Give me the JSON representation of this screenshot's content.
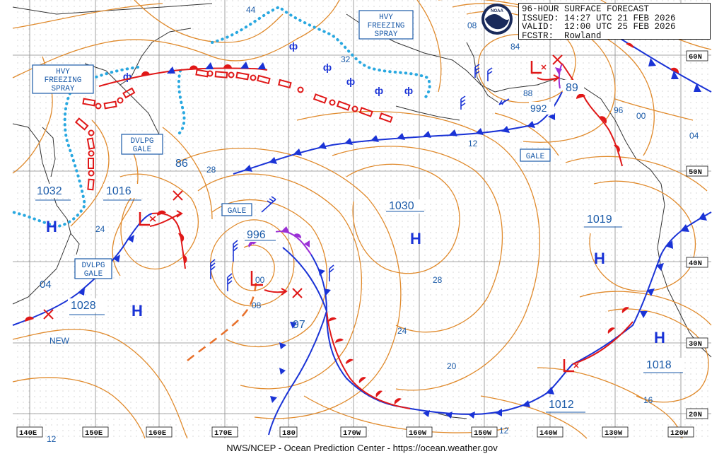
{
  "header": {
    "title": "96-HOUR SURFACE FORECAST",
    "issued": "ISSUED: 14:27 UTC 21 FEB 2026",
    "valid": "VALID:  12:00 UTC 25 FEB 2026",
    "forecaster": "FCSTR:  Rowland"
  },
  "logo_text": "NOAA",
  "credit": "NWS/NCEP - Ocean Prediction Center - https://ocean.weather.gov",
  "lat_labels": [
    "60N",
    "50N",
    "40N",
    "30N",
    "20N"
  ],
  "lon_labels": [
    "140E",
    "150E",
    "160E",
    "170E",
    "180",
    "170W",
    "160W",
    "150W",
    "140W",
    "130W",
    "120W"
  ],
  "pressure_systems": [
    {
      "type": "H",
      "value": "1032"
    },
    {
      "type": "H",
      "value": "1028"
    },
    {
      "type": "H",
      "value": "1030"
    },
    {
      "type": "H",
      "value": "1019"
    },
    {
      "type": "H",
      "value": "1018"
    },
    {
      "type": "L",
      "value": "1016"
    },
    {
      "type": "L",
      "value": "996"
    },
    {
      "type": "L",
      "value": "992"
    },
    {
      "type": "L",
      "value": "89"
    },
    {
      "type": "L",
      "value": "1012"
    }
  ],
  "warnings": {
    "hvy_freezing_spray_w": "HVY\nFREEZING\nSPRAY",
    "hvy_freezing_spray_n": "HVY\nFREEZING\nSPRAY",
    "dvlpg_gale_1": "DVLPG\nGALE",
    "dvlpg_gale_2": "DVLPG\nGALE",
    "gale_1": "GALE",
    "gale_2": "GALE"
  },
  "isobar_labels": [
    "44",
    "32",
    "08",
    "84",
    "88",
    "96",
    "00",
    "04",
    "86",
    "28",
    "12",
    "24",
    "04",
    "00",
    "08",
    "97",
    "28",
    "24",
    "20",
    "16",
    "12",
    "12"
  ],
  "new_label": "NEW",
  "colors": {
    "isobar": "#e08a2c",
    "cold_front": "#1a33d6",
    "warm_front": "#e01818",
    "occluded_front": "#9b2fd6",
    "high_low_text": "#1a33d6",
    "low_symbol": "#e01818",
    "freezing_spray": "#29a8e0",
    "grid": "#8a8a8a",
    "coast": "#333333"
  }
}
